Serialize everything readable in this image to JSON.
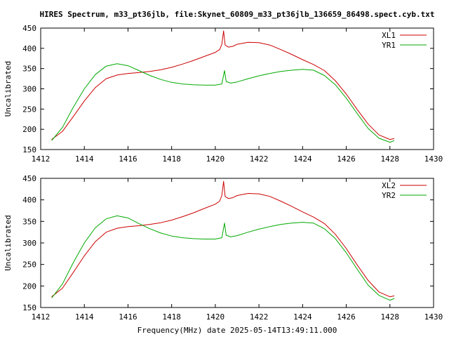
{
  "title": "HIRES Spectrum, m33_pt36jlb, file:Skynet_60809_m33_pt36jlb_136659_86498.spect.cyb.txt",
  "xlabel": "Frequency(MHz) date 2025-05-14T13:49:11.000",
  "colors": {
    "red": "#cc0000",
    "green": "#00aa00",
    "axis": "#000000"
  },
  "chart_data": [
    {
      "type": "line",
      "ylabel": "Uncalibrated",
      "xlim": [
        1412,
        1430
      ],
      "ylim": [
        150,
        450
      ],
      "xticks": [
        1412,
        1414,
        1416,
        1418,
        1420,
        1422,
        1424,
        1426,
        1428,
        1430
      ],
      "yticks": [
        150,
        200,
        250,
        300,
        350,
        400,
        450
      ],
      "legend": "top-right",
      "series": [
        {
          "name": "XL1",
          "color": "red",
          "points": [
            [
              1412.5,
              175
            ],
            [
              1413.0,
              195
            ],
            [
              1413.5,
              232
            ],
            [
              1414.0,
              270
            ],
            [
              1414.5,
              303
            ],
            [
              1415.0,
              325
            ],
            [
              1415.5,
              334
            ],
            [
              1416.0,
              338
            ],
            [
              1416.5,
              340
            ],
            [
              1417.0,
              343
            ],
            [
              1417.5,
              347
            ],
            [
              1418.0,
              353
            ],
            [
              1418.5,
              361
            ],
            [
              1419.0,
              370
            ],
            [
              1419.5,
              380
            ],
            [
              1420.0,
              390
            ],
            [
              1420.2,
              397
            ],
            [
              1420.3,
              410
            ],
            [
              1420.38,
              443
            ],
            [
              1420.45,
              408
            ],
            [
              1420.6,
              403
            ],
            [
              1420.8,
              405
            ],
            [
              1421.0,
              410
            ],
            [
              1421.5,
              415
            ],
            [
              1422.0,
              414
            ],
            [
              1422.5,
              408
            ],
            [
              1423.0,
              397
            ],
            [
              1423.5,
              385
            ],
            [
              1424.0,
              372
            ],
            [
              1424.5,
              360
            ],
            [
              1425.0,
              345
            ],
            [
              1425.5,
              320
            ],
            [
              1426.0,
              287
            ],
            [
              1426.5,
              249
            ],
            [
              1427.0,
              213
            ],
            [
              1427.5,
              186
            ],
            [
              1428.0,
              175
            ],
            [
              1428.2,
              177
            ]
          ]
        },
        {
          "name": "YR1",
          "color": "green",
          "points": [
            [
              1412.5,
              172
            ],
            [
              1413.0,
              205
            ],
            [
              1413.5,
              255
            ],
            [
              1414.0,
              300
            ],
            [
              1414.5,
              335
            ],
            [
              1415.0,
              356
            ],
            [
              1415.5,
              362
            ],
            [
              1416.0,
              357
            ],
            [
              1416.5,
              345
            ],
            [
              1417.0,
              333
            ],
            [
              1417.5,
              323
            ],
            [
              1418.0,
              316
            ],
            [
              1418.5,
              312
            ],
            [
              1419.0,
              310
            ],
            [
              1419.5,
              309
            ],
            [
              1420.0,
              309
            ],
            [
              1420.3,
              312
            ],
            [
              1420.42,
              345
            ],
            [
              1420.5,
              318
            ],
            [
              1420.7,
              314
            ],
            [
              1421.0,
              317
            ],
            [
              1421.5,
              325
            ],
            [
              1422.0,
              332
            ],
            [
              1422.5,
              338
            ],
            [
              1423.0,
              343
            ],
            [
              1423.5,
              346
            ],
            [
              1424.0,
              348
            ],
            [
              1424.5,
              346
            ],
            [
              1425.0,
              333
            ],
            [
              1425.5,
              310
            ],
            [
              1426.0,
              277
            ],
            [
              1426.5,
              239
            ],
            [
              1427.0,
              202
            ],
            [
              1427.5,
              178
            ],
            [
              1428.0,
              168
            ],
            [
              1428.2,
              172
            ]
          ]
        }
      ]
    },
    {
      "type": "line",
      "ylabel": "Uncalibrated",
      "xlim": [
        1412,
        1430
      ],
      "ylim": [
        150,
        450
      ],
      "xticks": [
        1412,
        1414,
        1416,
        1418,
        1420,
        1422,
        1424,
        1426,
        1428,
        1430
      ],
      "yticks": [
        150,
        200,
        250,
        300,
        350,
        400,
        450
      ],
      "legend": "top-right",
      "series": [
        {
          "name": "XL2",
          "color": "red",
          "points": [
            [
              1412.5,
              175
            ],
            [
              1413.0,
              195
            ],
            [
              1413.5,
              232
            ],
            [
              1414.0,
              270
            ],
            [
              1414.5,
              303
            ],
            [
              1415.0,
              325
            ],
            [
              1415.5,
              334
            ],
            [
              1416.0,
              338
            ],
            [
              1416.5,
              340
            ],
            [
              1417.0,
              343
            ],
            [
              1417.5,
              347
            ],
            [
              1418.0,
              353
            ],
            [
              1418.5,
              361
            ],
            [
              1419.0,
              370
            ],
            [
              1419.5,
              380
            ],
            [
              1420.0,
              390
            ],
            [
              1420.2,
              397
            ],
            [
              1420.3,
              410
            ],
            [
              1420.38,
              443
            ],
            [
              1420.45,
              408
            ],
            [
              1420.6,
              403
            ],
            [
              1420.8,
              405
            ],
            [
              1421.0,
              410
            ],
            [
              1421.5,
              415
            ],
            [
              1422.0,
              414
            ],
            [
              1422.5,
              408
            ],
            [
              1423.0,
              397
            ],
            [
              1423.5,
              385
            ],
            [
              1424.0,
              372
            ],
            [
              1424.5,
              360
            ],
            [
              1425.0,
              345
            ],
            [
              1425.5,
              320
            ],
            [
              1426.0,
              287
            ],
            [
              1426.5,
              249
            ],
            [
              1427.0,
              213
            ],
            [
              1427.5,
              186
            ],
            [
              1428.0,
              175
            ],
            [
              1428.2,
              177
            ]
          ]
        },
        {
          "name": "YR2",
          "color": "green",
          "points": [
            [
              1412.5,
              172
            ],
            [
              1413.0,
              205
            ],
            [
              1413.5,
              255
            ],
            [
              1414.0,
              300
            ],
            [
              1414.5,
              335
            ],
            [
              1415.0,
              356
            ],
            [
              1415.5,
              363
            ],
            [
              1416.0,
              358
            ],
            [
              1416.5,
              345
            ],
            [
              1417.0,
              333
            ],
            [
              1417.5,
              323
            ],
            [
              1418.0,
              316
            ],
            [
              1418.5,
              312
            ],
            [
              1419.0,
              310
            ],
            [
              1419.5,
              309
            ],
            [
              1420.0,
              309
            ],
            [
              1420.3,
              312
            ],
            [
              1420.42,
              346
            ],
            [
              1420.5,
              318
            ],
            [
              1420.7,
              314
            ],
            [
              1421.0,
              317
            ],
            [
              1421.5,
              325
            ],
            [
              1422.0,
              332
            ],
            [
              1422.5,
              338
            ],
            [
              1423.0,
              343
            ],
            [
              1423.5,
              346
            ],
            [
              1424.0,
              348
            ],
            [
              1424.5,
              346
            ],
            [
              1425.0,
              333
            ],
            [
              1425.5,
              310
            ],
            [
              1426.0,
              277
            ],
            [
              1426.5,
              239
            ],
            [
              1427.0,
              202
            ],
            [
              1427.5,
              178
            ],
            [
              1428.0,
              167
            ],
            [
              1428.2,
              171
            ]
          ]
        }
      ]
    }
  ]
}
